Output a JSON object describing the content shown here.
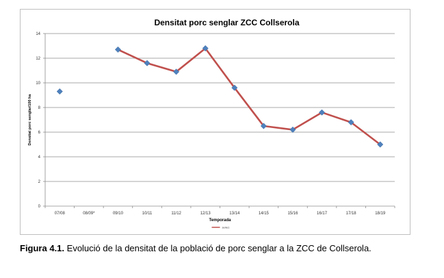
{
  "chart_data": {
    "type": "line",
    "title": "Densitat porc senglar ZCC Collserola",
    "xlabel": "Temporada",
    "ylabel": "Densitat porc senglar/100 ha",
    "ylim": [
      0,
      14
    ],
    "yticks": [
      "0",
      "2",
      "4",
      "6",
      "8",
      "10",
      "12",
      "14"
    ],
    "categories": [
      "07/08",
      "08/09*",
      "09/10",
      "10/11",
      "11/12",
      "12/13",
      "13/14",
      "14/15",
      "15/16",
      "16/17",
      "17/18",
      "18/19"
    ],
    "grid": true,
    "legend_position": "bottom",
    "series": [
      {
        "name": "serie1",
        "color": "#c0504d",
        "marker_color": "#4f81bd",
        "values": [
          9.3,
          null,
          12.7,
          11.6,
          10.9,
          12.8,
          9.6,
          6.5,
          6.2,
          7.6,
          6.8,
          5.0
        ]
      }
    ]
  },
  "caption": {
    "label": "Figura 4.1.",
    "text": " Evolució de la densitat de la població de porc senglar a la ZCC de Collserola."
  }
}
